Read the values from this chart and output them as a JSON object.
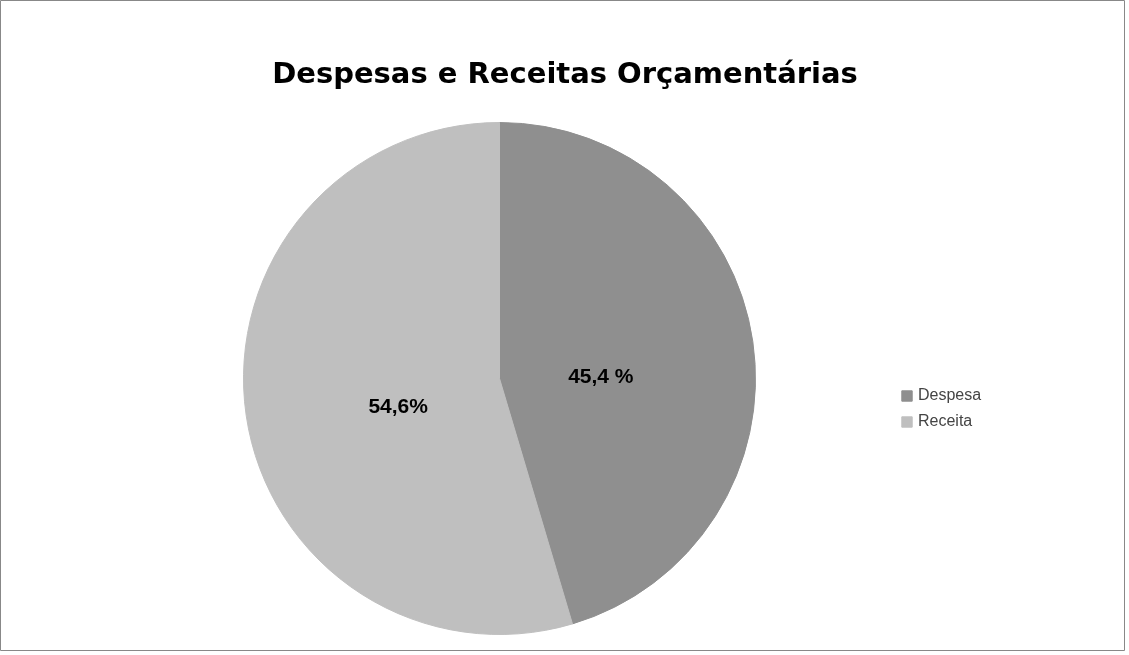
{
  "chart_data": {
    "type": "pie",
    "title": "Despesas e Receitas Orçamentárias",
    "categories": [
      "Despesa",
      "Receita"
    ],
    "values": [
      45.4,
      54.6
    ],
    "colors": [
      "#8f8f8f",
      "#bfbfbf"
    ],
    "value_labels": [
      "45,4 %",
      "54,6%"
    ],
    "legend": "right"
  }
}
